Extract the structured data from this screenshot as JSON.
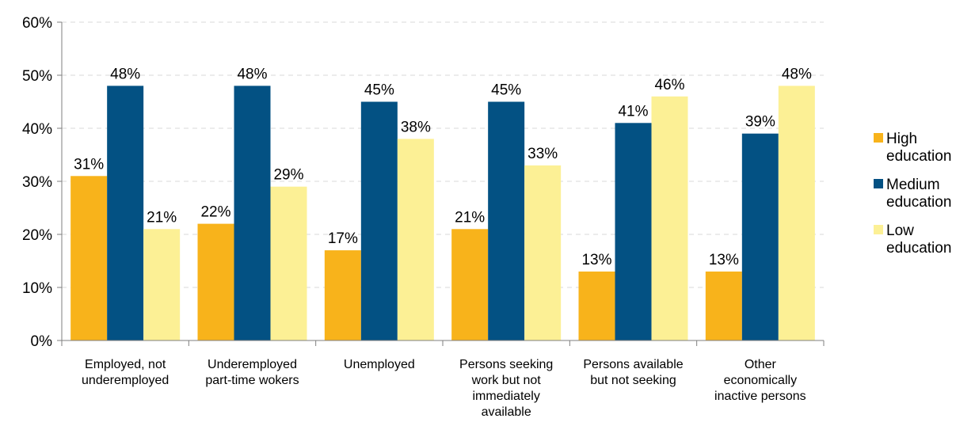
{
  "chart_data": {
    "type": "bar",
    "categories": [
      [
        "Employed, not",
        "underemployed"
      ],
      [
        "Underemployed",
        "part-time wokers"
      ],
      [
        "Unemployed"
      ],
      [
        "Persons seeking",
        "work but not",
        "immediately",
        "available"
      ],
      [
        "Persons available",
        "but not seeking"
      ],
      [
        "Other",
        "economically",
        "inactive persons"
      ]
    ],
    "series": [
      {
        "name": [
          "High",
          "education"
        ],
        "color": "#F8B31B",
        "values": [
          31,
          22,
          17,
          21,
          13,
          13
        ],
        "labels": [
          "31%",
          "22%",
          "17%",
          "21%",
          "13%",
          "13%"
        ]
      },
      {
        "name": [
          "Medium",
          "education"
        ],
        "color": "#035183",
        "values": [
          48,
          48,
          45,
          45,
          41,
          39
        ],
        "labels": [
          "48%",
          "48%",
          "45%",
          "45%",
          "41%",
          "39%"
        ]
      },
      {
        "name": [
          "Low",
          "education"
        ],
        "color": "#FCF095",
        "values": [
          21,
          29,
          38,
          33,
          46,
          48
        ],
        "labels": [
          "21%",
          "29%",
          "38%",
          "33%",
          "46%",
          "48%"
        ]
      }
    ],
    "yticks": [
      "0%",
      "10%",
      "20%",
      "30%",
      "40%",
      "50%",
      "60%"
    ],
    "ylim": [
      0,
      60
    ],
    "grid": true,
    "legend": "right"
  }
}
